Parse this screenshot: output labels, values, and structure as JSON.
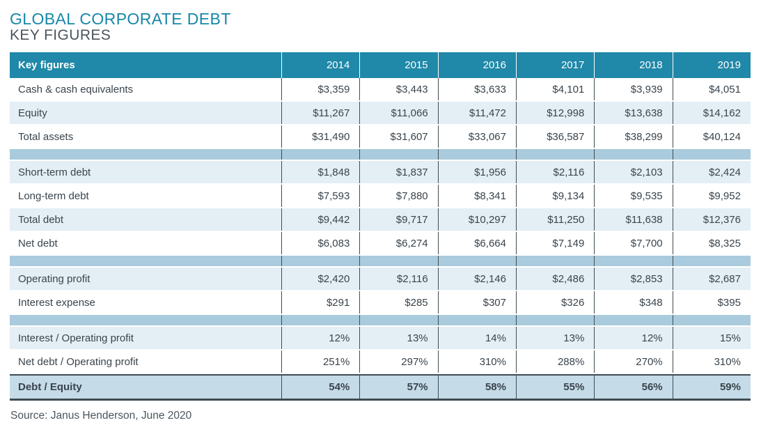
{
  "title": "GLOBAL CORPORATE DEBT",
  "subtitle": "KEY FIGURES",
  "source_note": "Source: Janus Henderson, June 2020",
  "colors": {
    "header_teal": "#2088a8",
    "title_teal": "#1787a9",
    "light_row_blue": "#e3eef5",
    "separator_band_blue": "#a9cbdd",
    "total_row_blue": "#c5dbe8",
    "dark_border": "#3f4b52",
    "body_text": "#39444c"
  },
  "chart_data": {
    "type": "table",
    "title": "GLOBAL CORPORATE DEBT",
    "subtitle": "KEY FIGURES",
    "source": "Source: Janus Henderson, June 2020",
    "header": {
      "label": "Key figures",
      "years": [
        "2014",
        "2015",
        "2016",
        "2017",
        "2018",
        "2019"
      ]
    },
    "rows": [
      {
        "label": "Cash & cash equivalents",
        "values": [
          "$3,359",
          "$3,443",
          "$3,633",
          "$4,101",
          "$3,939",
          "$4,051"
        ]
      },
      {
        "label": "Equity",
        "values": [
          "$11,267",
          "$11,066",
          "$11,472",
          "$12,998",
          "$13,638",
          "$14,162"
        ]
      },
      {
        "label": "Total assets",
        "values": [
          "$31,490",
          "$31,607",
          "$33,067",
          "$36,587",
          "$38,299",
          "$40,124"
        ]
      },
      {
        "label": "Short-term debt",
        "values": [
          "$1,848",
          "$1,837",
          "$1,956",
          "$2,116",
          "$2,103",
          "$2,424"
        ]
      },
      {
        "label": "Long-term debt",
        "values": [
          "$7,593",
          "$7,880",
          "$8,341",
          "$9,134",
          "$9,535",
          "$9,952"
        ]
      },
      {
        "label": "Total debt",
        "values": [
          "$9,442",
          "$9,717",
          "$10,297",
          "$11,250",
          "$11,638",
          "$12,376"
        ]
      },
      {
        "label": "Net debt",
        "values": [
          "$6,083",
          "$6,274",
          "$6,664",
          "$7,149",
          "$7,700",
          "$8,325"
        ]
      },
      {
        "label": "Operating profit",
        "values": [
          "$2,420",
          "$2,116",
          "$2,146",
          "$2,486",
          "$2,853",
          "$2,687"
        ]
      },
      {
        "label": "Interest expense",
        "values": [
          "$291",
          "$285",
          "$307",
          "$326",
          "$348",
          "$395"
        ]
      },
      {
        "label": "Interest / Operating profit",
        "values": [
          "12%",
          "13%",
          "14%",
          "13%",
          "12%",
          "15%"
        ]
      },
      {
        "label": "Net debt / Operating profit",
        "values": [
          "251%",
          "297%",
          "310%",
          "288%",
          "270%",
          "310%"
        ]
      },
      {
        "label": "Debt / Equity",
        "values": [
          "54%",
          "57%",
          "58%",
          "55%",
          "56%",
          "59%"
        ]
      }
    ]
  }
}
